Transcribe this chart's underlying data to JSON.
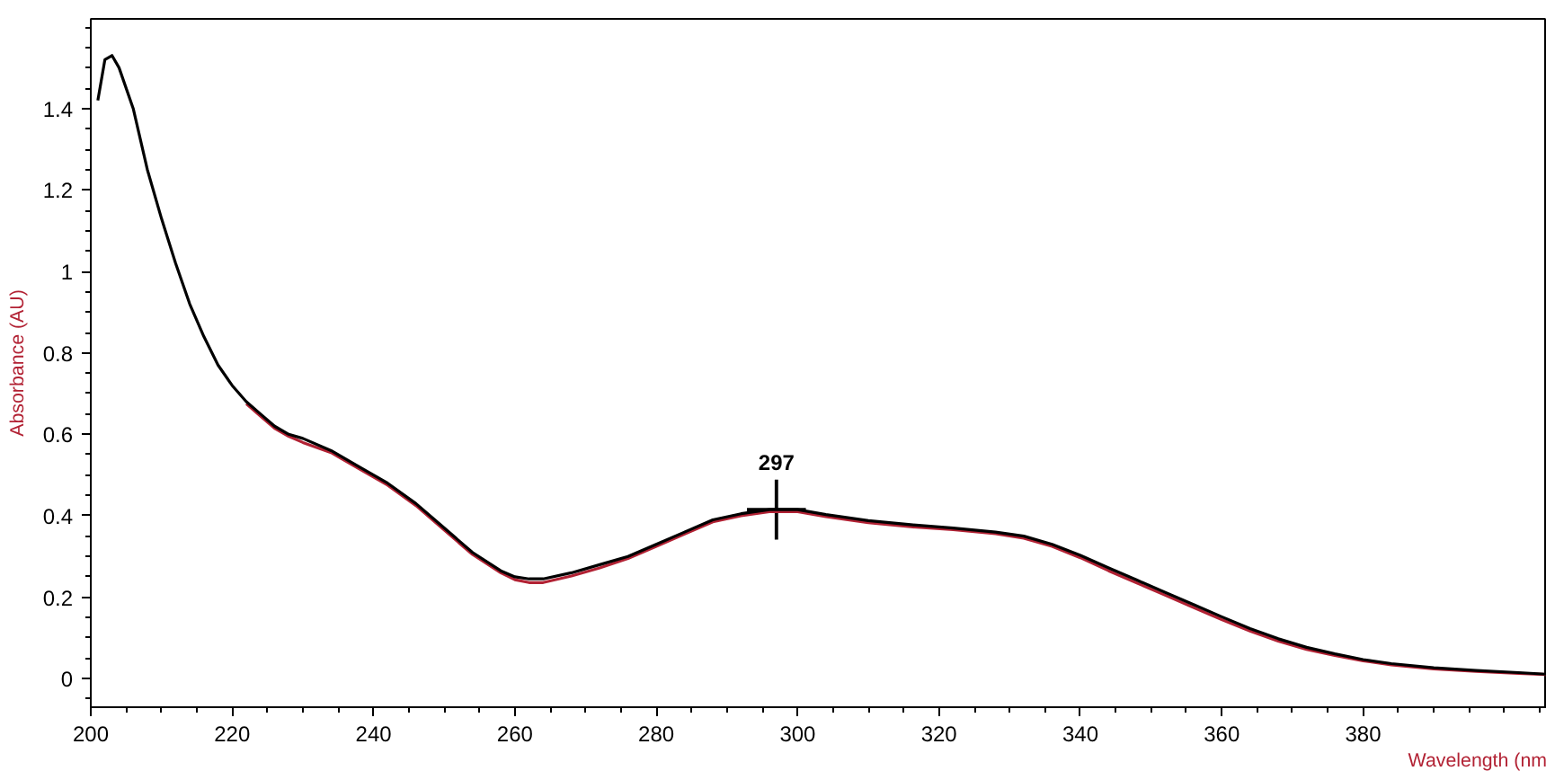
{
  "chart_data": {
    "type": "line",
    "xlabel": "Wavelength (nm",
    "ylabel": "Absorbance (AU)",
    "xlim": [
      200,
      406
    ],
    "ylim": [
      -0.07,
      1.62
    ],
    "xticks": [
      200,
      220,
      240,
      260,
      280,
      300,
      320,
      340,
      360,
      380
    ],
    "yticks": [
      0,
      0.2,
      0.4,
      0.6,
      0.8,
      1,
      1.2,
      1.4
    ],
    "grid": false,
    "marker": "none",
    "line_style": "solid",
    "x": [
      201,
      202,
      203,
      204,
      206,
      208,
      210,
      212,
      214,
      216,
      218,
      220,
      222,
      224,
      226,
      228,
      230,
      234,
      238,
      242,
      246,
      250,
      254,
      258,
      260,
      262,
      264,
      268,
      272,
      276,
      280,
      284,
      288,
      292,
      296,
      300,
      304,
      310,
      316,
      322,
      328,
      332,
      336,
      340,
      344,
      348,
      352,
      356,
      360,
      364,
      368,
      372,
      376,
      380,
      384,
      390,
      396,
      402,
      406
    ],
    "series": [
      {
        "color": "#b22234",
        "values": [
          null,
          null,
          null,
          null,
          null,
          null,
          null,
          null,
          null,
          null,
          null,
          null,
          0.675,
          0.645,
          0.615,
          0.595,
          0.58,
          0.555,
          0.515,
          0.475,
          0.425,
          0.365,
          0.305,
          0.26,
          0.243,
          0.236,
          0.236,
          0.252,
          0.272,
          0.295,
          0.325,
          0.355,
          0.385,
          0.4,
          0.41,
          0.41,
          0.398,
          0.383,
          0.373,
          0.366,
          0.356,
          0.345,
          0.325,
          0.297,
          0.265,
          0.235,
          0.205,
          0.175,
          0.145,
          0.117,
          0.092,
          0.072,
          0.057,
          0.044,
          0.034,
          0.024,
          0.018,
          0.013,
          0.01
        ]
      },
      {
        "color": "#000000",
        "values": [
          1.42,
          1.52,
          1.53,
          1.5,
          1.4,
          1.25,
          1.13,
          1.02,
          0.92,
          0.84,
          0.77,
          0.72,
          0.68,
          0.65,
          0.62,
          0.6,
          0.59,
          0.56,
          0.52,
          0.48,
          0.43,
          0.37,
          0.31,
          0.265,
          0.25,
          0.245,
          0.245,
          0.26,
          0.28,
          0.3,
          0.33,
          0.36,
          0.39,
          0.405,
          0.415,
          0.415,
          0.403,
          0.388,
          0.378,
          0.37,
          0.36,
          0.35,
          0.33,
          0.303,
          0.272,
          0.242,
          0.212,
          0.182,
          0.152,
          0.123,
          0.098,
          0.077,
          0.061,
          0.047,
          0.037,
          0.027,
          0.02,
          0.015,
          0.011
        ]
      }
    ],
    "annotations": [
      {
        "text": "297",
        "x": 297,
        "y": 0.415
      }
    ]
  }
}
